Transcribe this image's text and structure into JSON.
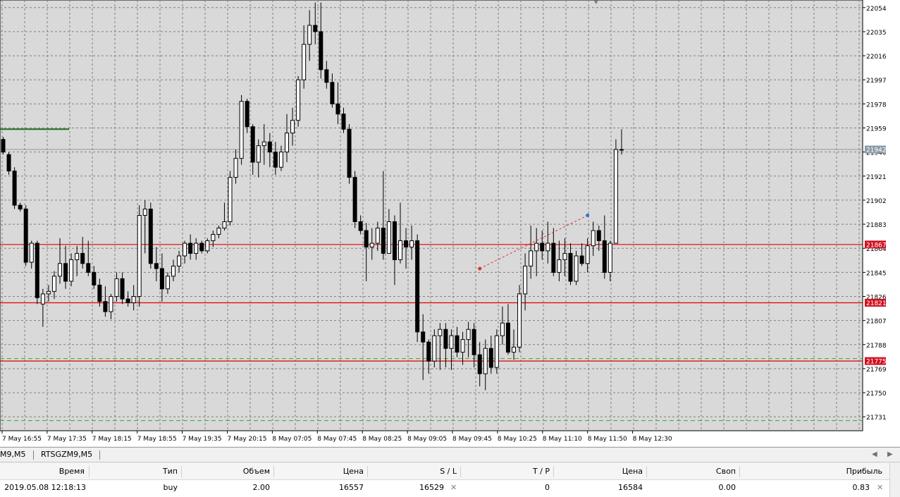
{
  "chart": {
    "background": "#d9d9d9",
    "grid_color": "#808080",
    "price_min": 21720,
    "price_max": 22060,
    "price_ticks": [
      "22054",
      "22035",
      "22016",
      "21997",
      "21978",
      "21959",
      "21940",
      "21921",
      "21902",
      "21883",
      "21864",
      "21845",
      "21826",
      "21807",
      "21788",
      "21769",
      "21750",
      "21731"
    ],
    "time_labels": [
      "7 May 16:55",
      "7 May 17:35",
      "7 May 18:15",
      "7 May 18:55",
      "7 May 19:35",
      "7 May 20:15",
      "8 May 07:05",
      "8 May 07:45",
      "8 May 08:25",
      "8 May 09:05",
      "8 May 09:45",
      "8 May 10:25",
      "8 May 11:10",
      "8 May 11:50",
      "8 May 12:30"
    ],
    "current_price": {
      "label": "21942",
      "value": 21942,
      "color": "#8c9aa8"
    },
    "hlines": [
      {
        "label": "21867",
        "value": 21867,
        "color": "#e00000"
      },
      {
        "label": "21821",
        "value": 21821,
        "color": "#e00000"
      },
      {
        "label": "21775",
        "value": 21775,
        "color": "#e00000"
      }
    ],
    "dashed_green_levels": [
      21777,
      21728
    ],
    "green_short_level": 21958,
    "candles": [
      [
        21950,
        21952,
        21938,
        21940
      ],
      [
        21938,
        21940,
        21922,
        21925
      ],
      [
        21925,
        21928,
        21895,
        21898
      ],
      [
        21898,
        21900,
        21893,
        21895
      ],
      [
        21895,
        21898,
        21850,
        21853
      ],
      [
        21853,
        21870,
        21848,
        21868
      ],
      [
        21868,
        21870,
        21820,
        21825
      ],
      [
        21820,
        21832,
        21802,
        21828
      ],
      [
        21828,
        21835,
        21822,
        21830
      ],
      [
        21830,
        21846,
        21824,
        21842
      ],
      [
        21842,
        21872,
        21836,
        21852
      ],
      [
        21852,
        21866,
        21832,
        21838
      ],
      [
        21838,
        21860,
        21834,
        21855
      ],
      [
        21855,
        21866,
        21842,
        21860
      ],
      [
        21860,
        21873,
        21848,
        21852
      ],
      [
        21852,
        21870,
        21842,
        21845
      ],
      [
        21845,
        21850,
        21832,
        21835
      ],
      [
        21835,
        21840,
        21818,
        21822
      ],
      [
        21822,
        21834,
        21810,
        21814
      ],
      [
        21814,
        21828,
        21808,
        21826
      ],
      [
        21826,
        21845,
        21822,
        21840
      ],
      [
        21840,
        21845,
        21820,
        21824
      ],
      [
        21824,
        21830,
        21818,
        21821
      ],
      [
        21821,
        21835,
        21815,
        21826
      ],
      [
        21826,
        21898,
        21818,
        21890
      ],
      [
        21890,
        21902,
        21860,
        21895
      ],
      [
        21895,
        21900,
        21848,
        21852
      ],
      [
        21852,
        21865,
        21838,
        21848
      ],
      [
        21848,
        21860,
        21822,
        21832
      ],
      [
        21832,
        21845,
        21828,
        21842
      ],
      [
        21842,
        21855,
        21838,
        21850
      ],
      [
        21850,
        21862,
        21845,
        21858
      ],
      [
        21858,
        21870,
        21852,
        21868
      ],
      [
        21868,
        21875,
        21855,
        21860
      ],
      [
        21860,
        21872,
        21855,
        21868
      ],
      [
        21868,
        21870,
        21860,
        21862
      ],
      [
        21862,
        21872,
        21860,
        21870
      ],
      [
        21870,
        21878,
        21865,
        21875
      ],
      [
        21875,
        21882,
        21872,
        21880
      ],
      [
        21880,
        21900,
        21878,
        21885
      ],
      [
        21885,
        21925,
        21882,
        21920
      ],
      [
        21920,
        21942,
        21915,
        21935
      ],
      [
        21935,
        21985,
        21930,
        21980
      ],
      [
        21980,
        21982,
        21955,
        21960
      ],
      [
        21960,
        21962,
        21922,
        21932
      ],
      [
        21932,
        21950,
        21920,
        21945
      ],
      [
        21945,
        21962,
        21930,
        21948
      ],
      [
        21948,
        21955,
        21928,
        21940
      ],
      [
        21940,
        21948,
        21922,
        21928
      ],
      [
        21928,
        21945,
        21925,
        21940
      ],
      [
        21940,
        21970,
        21932,
        21955
      ],
      [
        21955,
        21975,
        21945,
        21965
      ],
      [
        21965,
        22000,
        21960,
        21997
      ],
      [
        21997,
        22040,
        21990,
        22025
      ],
      [
        22025,
        22052,
        22012,
        22040
      ],
      [
        22040,
        22058,
        22025,
        22035
      ],
      [
        22035,
        22058,
        21998,
        22005
      ],
      [
        22005,
        22012,
        21990,
        21995
      ],
      [
        21995,
        22002,
        21975,
        21978
      ],
      [
        21978,
        21995,
        21962,
        21970
      ],
      [
        21970,
        21975,
        21955,
        21958
      ],
      [
        21958,
        21962,
        21915,
        21920
      ],
      [
        21920,
        21925,
        21880,
        21885
      ],
      [
        21885,
        21890,
        21875,
        21878
      ],
      [
        21878,
        21884,
        21838,
        21865
      ],
      [
        21865,
        21880,
        21855,
        21868
      ],
      [
        21868,
        21885,
        21862,
        21880
      ],
      [
        21880,
        21925,
        21855,
        21860
      ],
      [
        21860,
        21895,
        21860,
        21885
      ],
      [
        21885,
        21890,
        21835,
        21855
      ],
      [
        21855,
        21900,
        21852,
        21870
      ],
      [
        21870,
        21880,
        21848,
        21865
      ],
      [
        21865,
        21882,
        21855,
        21870
      ],
      [
        21870,
        21875,
        21790,
        21798
      ],
      [
        21798,
        21812,
        21760,
        21790
      ],
      [
        21790,
        21792,
        21765,
        21775
      ],
      [
        21775,
        21800,
        21770,
        21795
      ],
      [
        21795,
        21805,
        21768,
        21800
      ],
      [
        21800,
        21805,
        21770,
        21785
      ],
      [
        21785,
        21800,
        21768,
        21795
      ],
      [
        21795,
        21802,
        21778,
        21782
      ],
      [
        21782,
        21798,
        21772,
        21792
      ],
      [
        21792,
        21806,
        21778,
        21800
      ],
      [
        21800,
        21805,
        21770,
        21780
      ],
      [
        21780,
        21790,
        21755,
        21765
      ],
      [
        21765,
        21792,
        21752,
        21785
      ],
      [
        21785,
        21795,
        21765,
        21770
      ],
      [
        21770,
        21800,
        21765,
        21795
      ],
      [
        21795,
        21818,
        21788,
        21805
      ],
      [
        21805,
        21820,
        21780,
        21782
      ],
      [
        21782,
        21800,
        21776,
        21786
      ],
      [
        21786,
        21835,
        21782,
        21828
      ],
      [
        21828,
        21860,
        21815,
        21850
      ],
      [
        21850,
        21882,
        21840,
        21862
      ],
      [
        21862,
        21880,
        21842,
        21868
      ],
      [
        21868,
        21878,
        21855,
        21862
      ],
      [
        21862,
        21885,
        21852,
        21868
      ],
      [
        21868,
        21880,
        21842,
        21845
      ],
      [
        21845,
        21870,
        21838,
        21855
      ],
      [
        21855,
        21872,
        21842,
        21860
      ],
      [
        21860,
        21868,
        21835,
        21838
      ],
      [
        21838,
        21862,
        21835,
        21858
      ],
      [
        21858,
        21868,
        21850,
        21852
      ],
      [
        21852,
        21872,
        21845,
        21866
      ],
      [
        21866,
        21885,
        21858,
        21878
      ],
      [
        21878,
        21882,
        21862,
        21870
      ],
      [
        21870,
        21890,
        21840,
        21845
      ],
      [
        21845,
        21870,
        21838,
        21868
      ],
      [
        21868,
        21950,
        21868,
        21942
      ],
      [
        21942,
        21958,
        21938,
        21942
      ]
    ]
  },
  "tabs": [
    "M9,M5",
    "RTSGZM9,M5"
  ],
  "table": {
    "headers": [
      "Время",
      "Тип",
      "Объем",
      "Цена",
      "S / L",
      "T / P",
      "Цена",
      "Своп",
      "Прибыль"
    ],
    "row": [
      "2019.05.08 12:18:13",
      "buy",
      "2.00",
      "16557",
      "16529",
      "0",
      "16584",
      "0.00",
      "0.83"
    ]
  }
}
